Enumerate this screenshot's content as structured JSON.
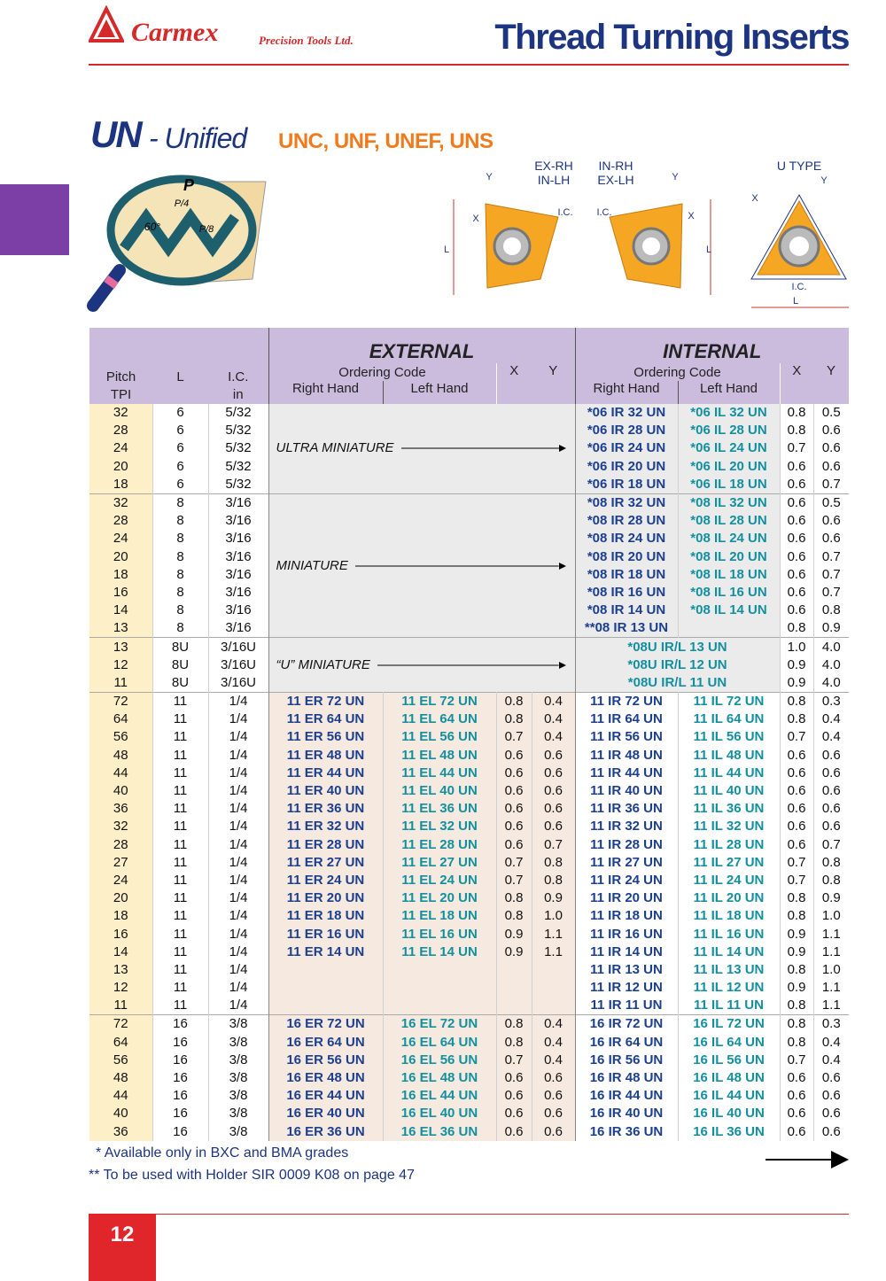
{
  "header": {
    "brand": "Carmex",
    "brand_sub": "Precision Tools Ltd.",
    "title": "Thread Turning Inserts"
  },
  "section": {
    "code": "UN",
    "name": "- Unified",
    "series": "UNC, UNF, UNEF, UNS"
  },
  "diagram_labels": {
    "p": "P",
    "p4": "P/4",
    "angle": "60°",
    "p8": "P/8",
    "ex_rh": "EX-RH",
    "in_lh": "IN-LH",
    "in_rh": "IN-RH",
    "ex_lh": "EX-LH",
    "u_type": "U TYPE",
    "x": "X",
    "y": "Y",
    "ic": "I.C.",
    "l": "L"
  },
  "table": {
    "head": {
      "pitch": "Pitch",
      "tpi": "TPI",
      "l": "L",
      "ic": "I.C.",
      "in": "in",
      "external": "EXTERNAL",
      "internal": "INTERNAL",
      "ordering_code": "Ordering Code",
      "x": "X",
      "y": "Y",
      "right_hand": "Right Hand",
      "left_hand": "Left Hand"
    },
    "groups": [
      {
        "label": "ULTRA MINIATURE",
        "rows": [
          {
            "p": 32,
            "l": 6,
            "ic": "5/32",
            "irh": "*06 IR 32 UN",
            "ilh": "*06 IL 32 UN",
            "ix": 0.8,
            "iy": 0.5
          },
          {
            "p": 28,
            "l": 6,
            "ic": "5/32",
            "irh": "*06 IR 28 UN",
            "ilh": "*06 IL 28 UN",
            "ix": 0.8,
            "iy": 0.6
          },
          {
            "p": 24,
            "l": 6,
            "ic": "5/32",
            "irh": "*06 IR 24 UN",
            "ilh": "*06 IL 24 UN",
            "ix": 0.7,
            "iy": 0.6
          },
          {
            "p": 20,
            "l": 6,
            "ic": "5/32",
            "irh": "*06 IR 20 UN",
            "ilh": "*06 IL 20 UN",
            "ix": 0.6,
            "iy": 0.6
          },
          {
            "p": 18,
            "l": 6,
            "ic": "5/32",
            "irh": "*06 IR 18 UN",
            "ilh": "*06 IL 18 UN",
            "ix": 0.6,
            "iy": 0.7
          }
        ]
      },
      {
        "label": "MINIATURE",
        "rows": [
          {
            "p": 32,
            "l": 8,
            "ic": "3/16",
            "irh": "*08 IR 32 UN",
            "ilh": "*08 IL 32 UN",
            "ix": 0.6,
            "iy": 0.5
          },
          {
            "p": 28,
            "l": 8,
            "ic": "3/16",
            "irh": "*08 IR 28 UN",
            "ilh": "*08 IL 28 UN",
            "ix": 0.6,
            "iy": 0.6
          },
          {
            "p": 24,
            "l": 8,
            "ic": "3/16",
            "irh": "*08 IR 24 UN",
            "ilh": "*08 IL 24 UN",
            "ix": 0.6,
            "iy": 0.6
          },
          {
            "p": 20,
            "l": 8,
            "ic": "3/16",
            "irh": "*08 IR 20 UN",
            "ilh": "*08 IL 20 UN",
            "ix": 0.6,
            "iy": 0.7
          },
          {
            "p": 18,
            "l": 8,
            "ic": "3/16",
            "irh": "*08 IR 18 UN",
            "ilh": "*08 IL 18 UN",
            "ix": 0.6,
            "iy": 0.7
          },
          {
            "p": 16,
            "l": 8,
            "ic": "3/16",
            "irh": "*08 IR 16 UN",
            "ilh": "*08 IL 16 UN",
            "ix": 0.6,
            "iy": 0.7
          },
          {
            "p": 14,
            "l": 8,
            "ic": "3/16",
            "irh": "*08 IR 14 UN",
            "ilh": "*08 IL 14 UN",
            "ix": 0.6,
            "iy": 0.8
          },
          {
            "p": 13,
            "l": 8,
            "ic": "3/16",
            "irh": "**08 IR 13 UN",
            "ix": 0.8,
            "iy": 0.9
          }
        ]
      },
      {
        "label": "“U” MINIATURE",
        "rows": [
          {
            "p": 13,
            "l": "8U",
            "ic": "3/16U",
            "ir": "*08U IR/L 13 UN",
            "ix": "1.0",
            "iy": "4.0"
          },
          {
            "p": 12,
            "l": "8U",
            "ic": "3/16U",
            "ir": "*08U IR/L 12 UN",
            "ix": 0.9,
            "iy": "4.0"
          },
          {
            "p": 11,
            "l": "8U",
            "ic": "3/16U",
            "ir": "*08U IR/L 11 UN",
            "ix": 0.9,
            "iy": "4.0"
          }
        ]
      },
      {
        "rows": [
          {
            "p": 72,
            "l": 11,
            "ic": "1/4",
            "erh": "11 ER 72 UN",
            "elh": "11 EL 72 UN",
            "ex": 0.8,
            "ey": 0.4,
            "irh": "11 IR 72 UN",
            "ilh": "11 IL 72 UN",
            "ix": 0.8,
            "iy": 0.3
          },
          {
            "p": 64,
            "l": 11,
            "ic": "1/4",
            "erh": "11 ER 64 UN",
            "elh": "11 EL 64 UN",
            "ex": 0.8,
            "ey": 0.4,
            "irh": "11 IR 64 UN",
            "ilh": "11 IL 64 UN",
            "ix": 0.8,
            "iy": 0.4
          },
          {
            "p": 56,
            "l": 11,
            "ic": "1/4",
            "erh": "11 ER 56 UN",
            "elh": "11 EL 56 UN",
            "ex": 0.7,
            "ey": 0.4,
            "irh": "11 IR 56 UN",
            "ilh": "11 IL 56 UN",
            "ix": 0.7,
            "iy": 0.4
          },
          {
            "p": 48,
            "l": 11,
            "ic": "1/4",
            "erh": "11 ER 48 UN",
            "elh": "11 EL 48 UN",
            "ex": 0.6,
            "ey": 0.6,
            "irh": "11 IR 48 UN",
            "ilh": "11 IL 48 UN",
            "ix": 0.6,
            "iy": 0.6
          },
          {
            "p": 44,
            "l": 11,
            "ic": "1/4",
            "erh": "11 ER 44 UN",
            "elh": "11 EL 44 UN",
            "ex": 0.6,
            "ey": 0.6,
            "irh": "11 IR 44 UN",
            "ilh": "11 IL 44 UN",
            "ix": 0.6,
            "iy": 0.6
          },
          {
            "p": 40,
            "l": 11,
            "ic": "1/4",
            "erh": "11 ER 40 UN",
            "elh": "11 EL 40 UN",
            "ex": 0.6,
            "ey": 0.6,
            "irh": "11 IR 40 UN",
            "ilh": "11 IL 40 UN",
            "ix": 0.6,
            "iy": 0.6
          },
          {
            "p": 36,
            "l": 11,
            "ic": "1/4",
            "erh": "11 ER 36 UN",
            "elh": "11 EL 36 UN",
            "ex": 0.6,
            "ey": 0.6,
            "irh": "11 IR 36 UN",
            "ilh": "11 IL 36 UN",
            "ix": 0.6,
            "iy": 0.6
          },
          {
            "p": 32,
            "l": 11,
            "ic": "1/4",
            "erh": "11 ER 32 UN",
            "elh": "11 EL 32 UN",
            "ex": 0.6,
            "ey": 0.6,
            "irh": "11 IR 32 UN",
            "ilh": "11 IL 32 UN",
            "ix": 0.6,
            "iy": 0.6
          },
          {
            "p": 28,
            "l": 11,
            "ic": "1/4",
            "erh": "11 ER 28 UN",
            "elh": "11 EL 28 UN",
            "ex": 0.6,
            "ey": 0.7,
            "irh": "11 IR 28 UN",
            "ilh": "11 IL 28 UN",
            "ix": 0.6,
            "iy": 0.7
          },
          {
            "p": 27,
            "l": 11,
            "ic": "1/4",
            "erh": "11 ER 27 UN",
            "elh": "11 EL 27 UN",
            "ex": 0.7,
            "ey": 0.8,
            "irh": "11 IR 27 UN",
            "ilh": "11 IL 27 UN",
            "ix": 0.7,
            "iy": 0.8
          },
          {
            "p": 24,
            "l": 11,
            "ic": "1/4",
            "erh": "11 ER 24 UN",
            "elh": "11 EL 24 UN",
            "ex": 0.7,
            "ey": 0.8,
            "irh": "11 IR 24 UN",
            "ilh": "11 IL 24 UN",
            "ix": 0.7,
            "iy": 0.8
          },
          {
            "p": 20,
            "l": 11,
            "ic": "1/4",
            "erh": "11 ER 20 UN",
            "elh": "11 EL 20 UN",
            "ex": 0.8,
            "ey": 0.9,
            "irh": "11 IR 20 UN",
            "ilh": "11 IL 20 UN",
            "ix": 0.8,
            "iy": 0.9
          },
          {
            "p": 18,
            "l": 11,
            "ic": "1/4",
            "erh": "11 ER 18 UN",
            "elh": "11 EL 18 UN",
            "ex": 0.8,
            "ey": "1.0",
            "irh": "11 IR 18 UN",
            "ilh": "11 IL 18 UN",
            "ix": 0.8,
            "iy": "1.0"
          },
          {
            "p": 16,
            "l": 11,
            "ic": "1/4",
            "erh": "11 ER 16 UN",
            "elh": "11 EL 16 UN",
            "ex": 0.9,
            "ey": 1.1,
            "irh": "11 IR 16 UN",
            "ilh": "11 IL 16 UN",
            "ix": 0.9,
            "iy": 1.1
          },
          {
            "p": 14,
            "l": 11,
            "ic": "1/4",
            "erh": "11 ER 14 UN",
            "elh": "11 EL 14 UN",
            "ex": 0.9,
            "ey": 1.1,
            "irh": "11 IR 14 UN",
            "ilh": "11 IL 14 UN",
            "ix": 0.9,
            "iy": 1.1
          },
          {
            "p": 13,
            "l": 11,
            "ic": "1/4",
            "irh": "11 IR 13 UN",
            "ilh": "11 IL 13 UN",
            "ix": 0.8,
            "iy": "1.0"
          },
          {
            "p": 12,
            "l": 11,
            "ic": "1/4",
            "irh": "11 IR 12 UN",
            "ilh": "11 IL 12 UN",
            "ix": 0.9,
            "iy": 1.1
          },
          {
            "p": 11,
            "l": 11,
            "ic": "1/4",
            "irh": "11 IR 11 UN",
            "ilh": "11 IL 11 UN",
            "ix": 0.8,
            "iy": 1.1
          }
        ]
      },
      {
        "rows": [
          {
            "p": 72,
            "l": 16,
            "ic": "3/8",
            "erh": "16 ER 72 UN",
            "elh": "16 EL 72 UN",
            "ex": 0.8,
            "ey": 0.4,
            "irh": "16 IR 72 UN",
            "ilh": "16 IL 72 UN",
            "ix": 0.8,
            "iy": 0.3
          },
          {
            "p": 64,
            "l": 16,
            "ic": "3/8",
            "erh": "16 ER 64 UN",
            "elh": "16 EL 64 UN",
            "ex": 0.8,
            "ey": 0.4,
            "irh": "16 IR 64 UN",
            "ilh": "16 IL 64 UN",
            "ix": 0.8,
            "iy": 0.4
          },
          {
            "p": 56,
            "l": 16,
            "ic": "3/8",
            "erh": "16 ER 56 UN",
            "elh": "16 EL 56 UN",
            "ex": 0.7,
            "ey": 0.4,
            "irh": "16 IR 56 UN",
            "ilh": "16 IL 56 UN",
            "ix": 0.7,
            "iy": 0.4
          },
          {
            "p": 48,
            "l": 16,
            "ic": "3/8",
            "erh": "16 ER 48 UN",
            "elh": "16 EL 48 UN",
            "ex": 0.6,
            "ey": 0.6,
            "irh": "16 IR 48 UN",
            "ilh": "16 IL 48 UN",
            "ix": 0.6,
            "iy": 0.6
          },
          {
            "p": 44,
            "l": 16,
            "ic": "3/8",
            "erh": "16 ER 44 UN",
            "elh": "16 EL 44 UN",
            "ex": 0.6,
            "ey": 0.6,
            "irh": "16 IR 44 UN",
            "ilh": "16 IL 44 UN",
            "ix": 0.6,
            "iy": 0.6
          },
          {
            "p": 40,
            "l": 16,
            "ic": "3/8",
            "erh": "16 ER 40 UN",
            "elh": "16 EL 40 UN",
            "ex": 0.6,
            "ey": 0.6,
            "irh": "16 IR 40 UN",
            "ilh": "16 IL 40 UN",
            "ix": 0.6,
            "iy": 0.6
          },
          {
            "p": 36,
            "l": 16,
            "ic": "3/8",
            "erh": "16 ER 36 UN",
            "elh": "16 EL 36 UN",
            "ex": 0.6,
            "ey": 0.6,
            "irh": "16 IR 36 UN",
            "ilh": "16 IL 36 UN",
            "ix": 0.6,
            "iy": 0.6
          }
        ]
      }
    ]
  },
  "footnotes": [
    "* Available only in BXC and BMA grades",
    "** To be used with Holder SIR 0009 K08 on page 47"
  ],
  "page_number": "12"
}
